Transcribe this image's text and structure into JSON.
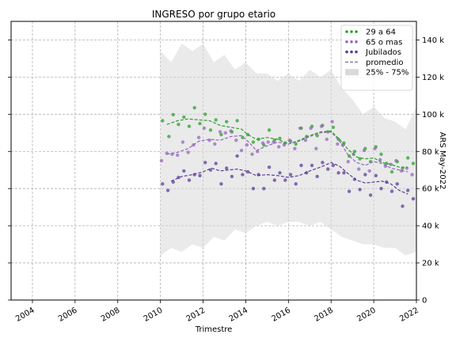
{
  "chart_data": {
    "type": "scatter",
    "title": "INGRESO por grupo etario",
    "xlabel": "Trimestre",
    "ylabel": "ARS May-2022",
    "y_axis_side": "right",
    "xlim": [
      2003.0,
      2022.0
    ],
    "ylim": [
      0,
      150000
    ],
    "x_ticks": [
      2004,
      2006,
      2008,
      2010,
      2012,
      2014,
      2016,
      2018,
      2020,
      2022
    ],
    "x_tick_labels": [
      "2004",
      "2006",
      "2008",
      "2010",
      "2012",
      "2014",
      "2016",
      "2018",
      "2020",
      "2022"
    ],
    "y_ticks": [
      0,
      20000,
      40000,
      60000,
      80000,
      100000,
      120000,
      140000
    ],
    "y_tick_labels": [
      "0",
      "20 k",
      "40 k",
      "60 k",
      "80 k",
      "100 k",
      "120 k",
      "140 k"
    ],
    "grid": true,
    "legend_position": "top-right",
    "legend": [
      {
        "label": "29 a 64",
        "kind": "dots",
        "color": "#2ca02c"
      },
      {
        "label": "65 o mas",
        "kind": "dots",
        "color": "#9467bd"
      },
      {
        "label": "Jubilados",
        "kind": "dots",
        "color": "#5e3c99"
      },
      {
        "label": "promedio",
        "kind": "dash",
        "color": "#777777"
      },
      {
        "label": "25% - 75%",
        "kind": "band",
        "color": "#d9d9d9"
      }
    ],
    "band": {
      "x": [
        2010.0,
        2010.5,
        2011.0,
        2011.5,
        2012.0,
        2012.5,
        2013.0,
        2013.5,
        2014.0,
        2014.5,
        2015.0,
        2015.5,
        2016.0,
        2016.5,
        2017.0,
        2017.5,
        2018.0,
        2018.5,
        2019.0,
        2019.5,
        2020.0,
        2020.5,
        2021.0,
        2021.5,
        2022.0
      ],
      "upper": [
        134000,
        128000,
        138000,
        134000,
        138000,
        128000,
        132000,
        124000,
        128000,
        122000,
        122000,
        118000,
        122000,
        118000,
        124000,
        120000,
        124000,
        114000,
        108000,
        100000,
        104000,
        98000,
        96000,
        92000,
        104000
      ],
      "lower": [
        24000,
        28000,
        26000,
        30000,
        28000,
        34000,
        32000,
        38000,
        36000,
        40000,
        42000,
        40000,
        42000,
        42000,
        40000,
        42000,
        38000,
        34000,
        32000,
        30000,
        30000,
        28000,
        28000,
        24000,
        26000
      ]
    },
    "series": [
      {
        "name": "29 a 64",
        "color": "#2ca02c",
        "points": [
          [
            2010.1,
            96500
          ],
          [
            2010.4,
            88000
          ],
          [
            2010.6,
            99800
          ],
          [
            2010.85,
            94500
          ],
          [
            2011.1,
            98500
          ],
          [
            2011.35,
            93500
          ],
          [
            2011.6,
            103500
          ],
          [
            2011.85,
            95000
          ],
          [
            2012.1,
            100000
          ],
          [
            2012.35,
            91500
          ],
          [
            2012.6,
            97000
          ],
          [
            2012.85,
            89000
          ],
          [
            2013.1,
            96000
          ],
          [
            2013.35,
            90500
          ],
          [
            2013.6,
            96500
          ],
          [
            2013.85,
            87500
          ],
          [
            2014.1,
            89000
          ],
          [
            2014.35,
            85000
          ],
          [
            2014.6,
            86500
          ],
          [
            2014.85,
            83500
          ],
          [
            2015.1,
            91500
          ],
          [
            2015.35,
            86000
          ],
          [
            2015.6,
            87000
          ],
          [
            2015.85,
            84500
          ],
          [
            2016.1,
            85500
          ],
          [
            2016.35,
            84000
          ],
          [
            2016.6,
            92500
          ],
          [
            2016.85,
            88000
          ],
          [
            2017.1,
            93500
          ],
          [
            2017.35,
            88500
          ],
          [
            2017.6,
            94000
          ],
          [
            2017.85,
            90500
          ],
          [
            2018.1,
            93000
          ],
          [
            2018.35,
            86500
          ],
          [
            2018.6,
            84500
          ],
          [
            2018.85,
            77500
          ],
          [
            2019.1,
            80000
          ],
          [
            2019.35,
            76000
          ],
          [
            2019.6,
            81500
          ],
          [
            2019.85,
            74500
          ],
          [
            2020.1,
            82500
          ],
          [
            2020.35,
            78500
          ],
          [
            2020.6,
            73500
          ],
          [
            2020.85,
            69000
          ],
          [
            2021.1,
            74500
          ],
          [
            2021.35,
            71000
          ],
          [
            2021.6,
            76500
          ],
          [
            2021.85,
            73500
          ]
        ],
        "avg": [
          [
            2010.3,
            94500
          ],
          [
            2010.8,
            96500
          ],
          [
            2011.3,
            97500
          ],
          [
            2011.8,
            97000
          ],
          [
            2012.3,
            96500
          ],
          [
            2012.8,
            94000
          ],
          [
            2013.3,
            93000
          ],
          [
            2013.8,
            92000
          ],
          [
            2014.1,
            89000
          ],
          [
            2014.5,
            86500
          ],
          [
            2015.0,
            87500
          ],
          [
            2015.5,
            86500
          ],
          [
            2016.0,
            84000
          ],
          [
            2016.5,
            86000
          ],
          [
            2017.0,
            88500
          ],
          [
            2017.5,
            90500
          ],
          [
            2018.0,
            91000
          ],
          [
            2018.4,
            86500
          ],
          [
            2018.8,
            81000
          ],
          [
            2019.2,
            77000
          ],
          [
            2019.6,
            76000
          ],
          [
            2020.0,
            76500
          ],
          [
            2020.4,
            74000
          ],
          [
            2020.8,
            73000
          ],
          [
            2021.2,
            71500
          ],
          [
            2021.6,
            71500
          ]
        ]
      },
      {
        "name": "65 o mas",
        "color": "#9467bd",
        "points": [
          [
            2010.05,
            75000
          ],
          [
            2010.3,
            79000
          ],
          [
            2010.55,
            78500
          ],
          [
            2010.8,
            78000
          ],
          [
            2011.05,
            85000
          ],
          [
            2011.3,
            79500
          ],
          [
            2011.55,
            83500
          ],
          [
            2011.8,
            87500
          ],
          [
            2012.05,
            92500
          ],
          [
            2012.3,
            86000
          ],
          [
            2012.55,
            84000
          ],
          [
            2012.8,
            90500
          ],
          [
            2013.05,
            90000
          ],
          [
            2013.3,
            91000
          ],
          [
            2013.55,
            86000
          ],
          [
            2013.8,
            80500
          ],
          [
            2014.05,
            83500
          ],
          [
            2014.3,
            78500
          ],
          [
            2014.55,
            80000
          ],
          [
            2014.8,
            84500
          ],
          [
            2015.05,
            85000
          ],
          [
            2015.3,
            85000
          ],
          [
            2015.55,
            82500
          ],
          [
            2015.8,
            83500
          ],
          [
            2016.05,
            86000
          ],
          [
            2016.3,
            81500
          ],
          [
            2016.55,
            92500
          ],
          [
            2016.8,
            86000
          ],
          [
            2017.05,
            92500
          ],
          [
            2017.3,
            81500
          ],
          [
            2017.55,
            93500
          ],
          [
            2017.8,
            86500
          ],
          [
            2018.05,
            96000
          ],
          [
            2018.3,
            84000
          ],
          [
            2018.55,
            83500
          ],
          [
            2018.8,
            74500
          ],
          [
            2019.05,
            78500
          ],
          [
            2019.3,
            70500
          ],
          [
            2019.55,
            80500
          ],
          [
            2019.8,
            69500
          ],
          [
            2020.05,
            81500
          ],
          [
            2020.3,
            75500
          ],
          [
            2020.55,
            72000
          ],
          [
            2020.8,
            73000
          ],
          [
            2021.05,
            75000
          ],
          [
            2021.3,
            69500
          ],
          [
            2021.55,
            71000
          ],
          [
            2021.8,
            67500
          ]
        ],
        "avg": [
          [
            2010.3,
            78500
          ],
          [
            2010.8,
            79500
          ],
          [
            2011.3,
            81500
          ],
          [
            2011.8,
            85500
          ],
          [
            2012.3,
            86500
          ],
          [
            2012.8,
            86000
          ],
          [
            2013.3,
            88000
          ],
          [
            2013.8,
            88500
          ],
          [
            2014.1,
            85500
          ],
          [
            2014.5,
            80500
          ],
          [
            2015.0,
            83000
          ],
          [
            2015.5,
            85000
          ],
          [
            2016.0,
            84000
          ],
          [
            2016.5,
            85500
          ],
          [
            2017.0,
            88000
          ],
          [
            2017.5,
            90000
          ],
          [
            2018.0,
            90500
          ],
          [
            2018.4,
            85500
          ],
          [
            2018.8,
            78000
          ],
          [
            2019.2,
            74000
          ],
          [
            2019.6,
            72500
          ],
          [
            2020.0,
            74500
          ],
          [
            2020.4,
            73500
          ],
          [
            2020.8,
            71000
          ],
          [
            2021.2,
            70000
          ],
          [
            2021.6,
            69000
          ]
        ]
      },
      {
        "name": "Jubilados",
        "color": "#5e3c99",
        "points": [
          [
            2010.1,
            62500
          ],
          [
            2010.35,
            59000
          ],
          [
            2010.6,
            63500
          ],
          [
            2010.85,
            66000
          ],
          [
            2011.1,
            69500
          ],
          [
            2011.35,
            64500
          ],
          [
            2011.6,
            67500
          ],
          [
            2011.85,
            67000
          ],
          [
            2012.1,
            74000
          ],
          [
            2012.35,
            70000
          ],
          [
            2012.6,
            73500
          ],
          [
            2012.85,
            62500
          ],
          [
            2013.1,
            71000
          ],
          [
            2013.35,
            66500
          ],
          [
            2013.6,
            77500
          ],
          [
            2013.85,
            67500
          ],
          [
            2014.1,
            69000
          ],
          [
            2014.35,
            60000
          ],
          [
            2014.6,
            67500
          ],
          [
            2014.85,
            60000
          ],
          [
            2015.1,
            71500
          ],
          [
            2015.35,
            64500
          ],
          [
            2015.6,
            68500
          ],
          [
            2015.85,
            64500
          ],
          [
            2016.1,
            67500
          ],
          [
            2016.35,
            62500
          ],
          [
            2016.6,
            72500
          ],
          [
            2016.85,
            68500
          ],
          [
            2017.1,
            72500
          ],
          [
            2017.35,
            66500
          ],
          [
            2017.6,
            74000
          ],
          [
            2017.85,
            70500
          ],
          [
            2018.1,
            72500
          ],
          [
            2018.35,
            68500
          ],
          [
            2018.6,
            68500
          ],
          [
            2018.85,
            58500
          ],
          [
            2019.1,
            65000
          ],
          [
            2019.35,
            59500
          ],
          [
            2019.6,
            67500
          ],
          [
            2019.85,
            56500
          ],
          [
            2020.1,
            67000
          ],
          [
            2020.35,
            60000
          ],
          [
            2020.6,
            63500
          ],
          [
            2020.85,
            58500
          ],
          [
            2021.1,
            62500
          ],
          [
            2021.35,
            50500
          ],
          [
            2021.6,
            59000
          ],
          [
            2021.85,
            54500
          ]
        ],
        "avg": [
          [
            2010.5,
            64000
          ],
          [
            2011.0,
            66500
          ],
          [
            2011.5,
            67500
          ],
          [
            2012.0,
            69000
          ],
          [
            2012.4,
            71000
          ],
          [
            2012.8,
            69500
          ],
          [
            2013.2,
            70000
          ],
          [
            2013.6,
            70500
          ],
          [
            2014.0,
            69500
          ],
          [
            2014.5,
            67000
          ],
          [
            2015.0,
            67500
          ],
          [
            2015.5,
            67000
          ],
          [
            2016.0,
            66000
          ],
          [
            2016.5,
            67000
          ],
          [
            2017.0,
            69500
          ],
          [
            2017.5,
            71500
          ],
          [
            2018.0,
            74000
          ],
          [
            2018.4,
            72000
          ],
          [
            2018.8,
            68000
          ],
          [
            2019.2,
            64500
          ],
          [
            2019.6,
            63000
          ],
          [
            2020.0,
            63500
          ],
          [
            2020.4,
            64000
          ],
          [
            2020.8,
            62500
          ],
          [
            2021.2,
            59000
          ],
          [
            2021.6,
            57000
          ]
        ]
      }
    ]
  }
}
